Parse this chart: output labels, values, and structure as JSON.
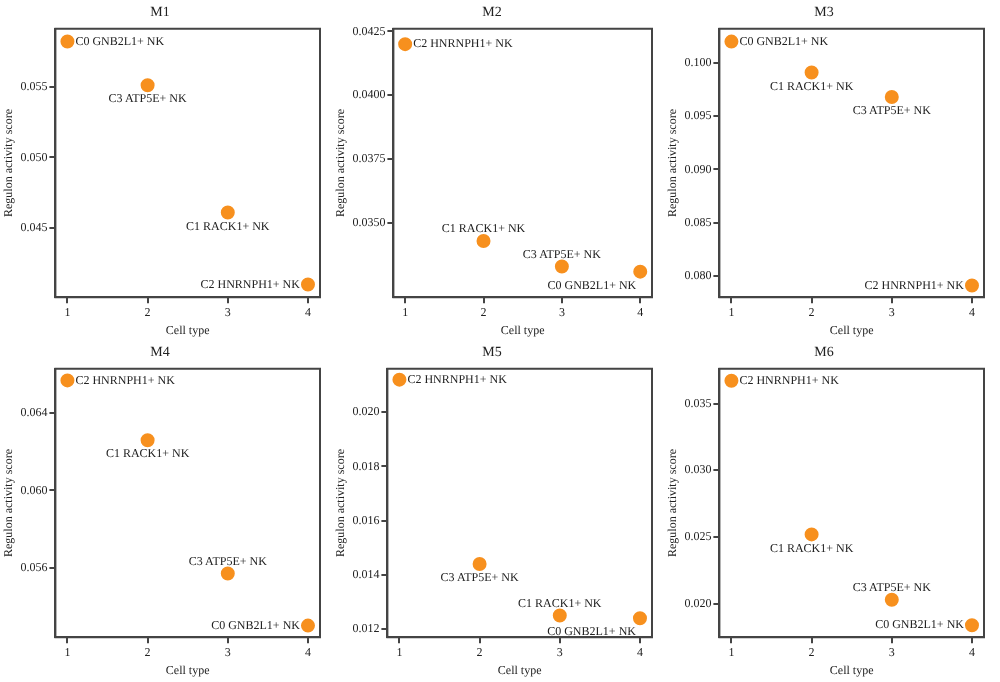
{
  "chart_data": [
    {
      "type": "scatter",
      "title": "M1",
      "xlabel": "Cell type",
      "ylabel": "Regulon activity score",
      "x": [
        1,
        2,
        3,
        4
      ],
      "values": [
        0.0582,
        0.0551,
        0.0461,
        0.041
      ],
      "color": "#f7901e",
      "marker": "circle",
      "grid": false,
      "xlim": [
        0.85,
        4.15
      ],
      "xticks": [
        1,
        2,
        3,
        4
      ],
      "ylim": [
        0.0401,
        0.0591
      ],
      "yticks": [
        0.045,
        {
          "value": 0.05,
          "label": "0.050"
        },
        0.055
      ],
      "annotations": [
        {
          "text": "C0 GNB2L1+ NK",
          "x": 1,
          "y": 0.0582
        },
        {
          "text": "C3 ATP5E+ NK",
          "x": 2,
          "y": 0.0551
        },
        {
          "text": "C1 RACK1+ NK",
          "x": 3,
          "y": 0.0461
        },
        {
          "text": "C2 HNRNPH1+ NK",
          "x": 4,
          "y": 0.041
        }
      ]
    },
    {
      "type": "scatter",
      "title": "M2",
      "xlabel": "Cell type",
      "ylabel": "Regulon activity score",
      "x": [
        1,
        2,
        3,
        4
      ],
      "values": [
        0.042,
        0.0343,
        0.0333,
        0.0331
      ],
      "color": "#f7901e",
      "marker": "circle",
      "grid": false,
      "xlim": [
        0.85,
        4.15
      ],
      "xticks": [
        1,
        2,
        3,
        4
      ],
      "ylim": [
        0.0321,
        0.0426
      ],
      "yticks": [
        {
          "value": 0.035,
          "label": "0.0350"
        },
        0.0375,
        {
          "value": 0.04,
          "label": "0.0400"
        },
        0.0425
      ],
      "annotations": [
        {
          "text": "C2 HNRNPH1+ NK",
          "x": 1,
          "y": 0.042
        },
        {
          "text": "C1 RACK1+ NK",
          "x": 2,
          "y": 0.0343
        },
        {
          "text": "C3 ATP5E+ NK",
          "x": 3,
          "y": 0.0333
        },
        {
          "text": "C0 GNB2L1+ NK",
          "x": 4,
          "y": 0.0331
        }
      ]
    },
    {
      "type": "scatter",
      "title": "M3",
      "xlabel": "Cell type",
      "ylabel": "Regulon activity score",
      "x": [
        1,
        2,
        3,
        4
      ],
      "values": [
        0.102,
        0.0991,
        0.0968,
        0.0791
      ],
      "color": "#f7901e",
      "marker": "circle",
      "grid": false,
      "xlim": [
        0.85,
        4.15
      ],
      "xticks": [
        1,
        2,
        3,
        4
      ],
      "ylim": [
        0.078,
        0.1032
      ],
      "yticks": [
        {
          "value": 0.08,
          "label": "0.080"
        },
        0.085,
        {
          "value": 0.09,
          "label": "0.090"
        },
        0.095,
        {
          "value": 0.1,
          "label": "0.100"
        }
      ],
      "annotations": [
        {
          "text": "C0 GNB2L1+ NK",
          "x": 1,
          "y": 0.102
        },
        {
          "text": "C1 RACK1+ NK",
          "x": 2,
          "y": 0.0991
        },
        {
          "text": "C3 ATP5E+ NK",
          "x": 3,
          "y": 0.0968
        },
        {
          "text": "C2 HNRNPH1+ NK",
          "x": 4,
          "y": 0.0791
        }
      ]
    },
    {
      "type": "scatter",
      "title": "M4",
      "xlabel": "Cell type",
      "ylabel": "Regulon activity score",
      "x": [
        1,
        2,
        3,
        4
      ],
      "values": [
        0.0657,
        0.0626,
        0.0557,
        0.053
      ],
      "color": "#f7901e",
      "marker": "circle",
      "grid": false,
      "xlim": [
        0.85,
        4.15
      ],
      "xticks": [
        1,
        2,
        3,
        4
      ],
      "ylim": [
        0.0524,
        0.0663
      ],
      "yticks": [
        0.056,
        {
          "value": 0.06,
          "label": "0.060"
        },
        0.064
      ],
      "annotations": [
        {
          "text": "C2 HNRNPH1+ NK",
          "x": 1,
          "y": 0.0657
        },
        {
          "text": "C1 RACK1+ NK",
          "x": 2,
          "y": 0.0626
        },
        {
          "text": "C3 ATP5E+ NK",
          "x": 3,
          "y": 0.0557
        },
        {
          "text": "C0 GNB2L1+ NK",
          "x": 4,
          "y": 0.053
        }
      ]
    },
    {
      "type": "scatter",
      "title": "M5",
      "xlabel": "Cell type",
      "ylabel": "Regulon activity score",
      "x": [
        1,
        2,
        3,
        4
      ],
      "values": [
        0.0212,
        0.0144,
        0.0125,
        0.0124
      ],
      "color": "#f7901e",
      "marker": "circle",
      "grid": false,
      "xlim": [
        0.85,
        4.15
      ],
      "xticks": [
        1,
        2,
        3,
        4
      ],
      "ylim": [
        0.0117,
        0.0216
      ],
      "yticks": [
        0.012,
        0.014,
        0.016,
        0.018,
        {
          "value": 0.02,
          "label": "0.020"
        }
      ],
      "annotations": [
        {
          "text": "C2 HNRNPH1+ NK",
          "x": 1,
          "y": 0.0212
        },
        {
          "text": "C3 ATP5E+ NK",
          "x": 2,
          "y": 0.0144
        },
        {
          "text": "C1 RACK1+ NK",
          "x": 3,
          "y": 0.0125
        },
        {
          "text": "C0 GNB2L1+ NK",
          "x": 4,
          "y": 0.0124
        }
      ]
    },
    {
      "type": "scatter",
      "title": "M6",
      "xlabel": "Cell type",
      "ylabel": "Regulon activity score",
      "x": [
        1,
        2,
        3,
        4
      ],
      "values": [
        0.0367,
        0.0252,
        0.0203,
        0.0184
      ],
      "color": "#f7901e",
      "marker": "circle",
      "grid": false,
      "xlim": [
        0.85,
        4.15
      ],
      "xticks": [
        1,
        2,
        3,
        4
      ],
      "ylim": [
        0.0175,
        0.0376
      ],
      "yticks": [
        {
          "value": 0.02,
          "label": "0.020"
        },
        0.025,
        {
          "value": 0.03,
          "label": "0.030"
        },
        0.035
      ],
      "annotations": [
        {
          "text": "C2 HNRNPH1+ NK",
          "x": 1,
          "y": 0.0367
        },
        {
          "text": "C1 RACK1+ NK",
          "x": 2,
          "y": 0.0252
        },
        {
          "text": "C3 ATP5E+ NK",
          "x": 3,
          "y": 0.0203
        },
        {
          "text": "C0 GNB2L1+ NK",
          "x": 4,
          "y": 0.0184
        }
      ]
    }
  ]
}
